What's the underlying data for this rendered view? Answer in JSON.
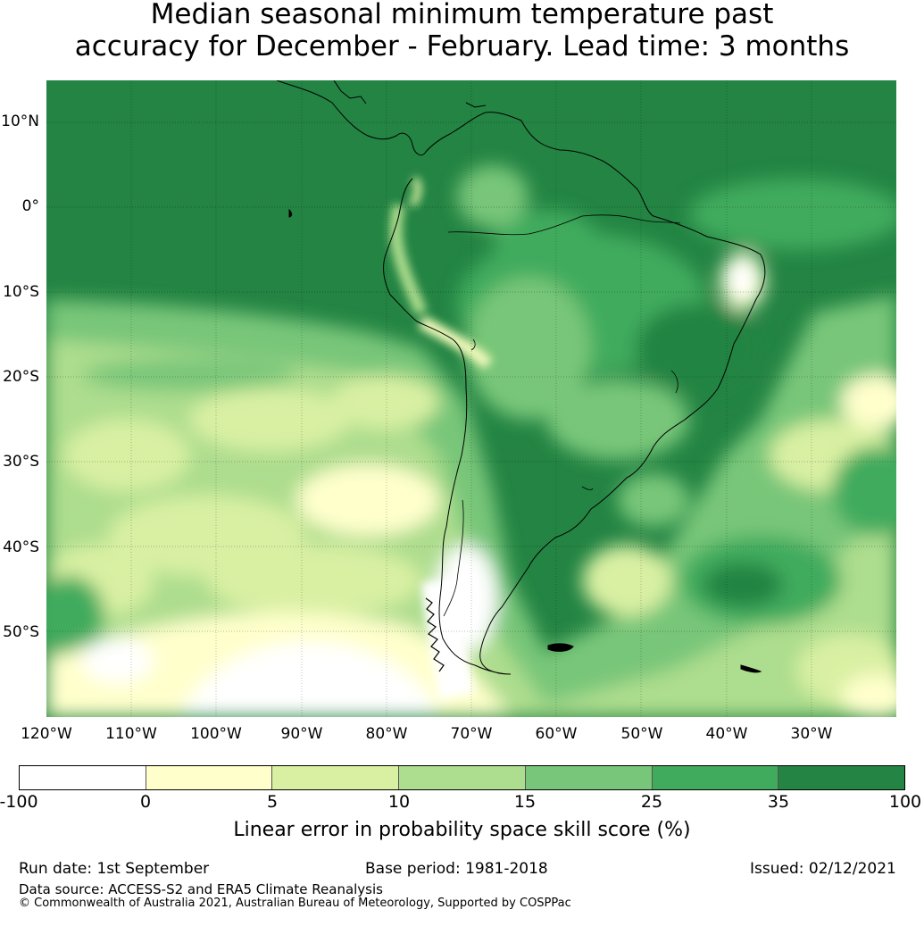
{
  "title": {
    "line1": "Median seasonal minimum temperature past",
    "line2": "accuracy for December - February. Lead time: 3 months"
  },
  "map": {
    "lat_labels": [
      "10°N",
      "0°",
      "10°S",
      "20°S",
      "30°S",
      "40°S",
      "50°S"
    ],
    "lon_labels": [
      "120°W",
      "110°W",
      "100°W",
      "90°W",
      "80°W",
      "70°W",
      "60°W",
      "50°W",
      "40°W",
      "30°W"
    ],
    "extent": {
      "lon_min": -120,
      "lon_max": -20,
      "lat_min": -60,
      "lat_max": 15
    },
    "ocean_color": "#238443",
    "land_outline_color": "#000000"
  },
  "colorbar": {
    "ticks": [
      "-100",
      "0",
      "5",
      "10",
      "15",
      "25",
      "35",
      "100"
    ],
    "colors": [
      "#ffffff",
      "#ffffcc",
      "#d9f0a3",
      "#addd8e",
      "#78c679",
      "#41ab5d",
      "#238443"
    ],
    "label": "Linear error in probability space skill score (%)"
  },
  "footer": {
    "run_date": "Run date: 1st September",
    "base_period": "Base period: 1981-2018",
    "issued": "Issued: 02/12/2021",
    "data_source": "Data source: ACCESS-S2 and ERA5 Climate Reanalysis",
    "copyright": "© Commonwealth of Australia 2021, Australian Bureau of Meteorology, Supported by COSPPac"
  }
}
